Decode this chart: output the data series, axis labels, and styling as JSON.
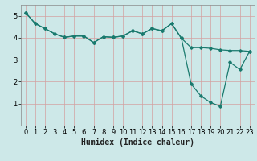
{
  "xlabel": "Humidex (Indice chaleur)",
  "background_color": "#cde8e8",
  "grid_color": "#d4a0a0",
  "line_color": "#1a7a6e",
  "xlim": [
    -0.5,
    23.5
  ],
  "ylim": [
    0,
    5.5
  ],
  "yticks": [
    1,
    2,
    3,
    4,
    5
  ],
  "xticks": [
    0,
    1,
    2,
    3,
    4,
    5,
    6,
    7,
    8,
    9,
    10,
    11,
    12,
    13,
    14,
    15,
    16,
    17,
    18,
    19,
    20,
    21,
    22,
    23
  ],
  "series1_x": [
    0,
    1,
    2,
    3,
    4,
    5,
    6,
    7,
    8,
    9,
    10,
    11,
    12,
    13,
    14,
    15,
    16,
    17,
    18,
    19,
    20,
    21,
    22,
    23
  ],
  "series1_y": [
    5.15,
    4.65,
    4.42,
    4.18,
    4.02,
    4.08,
    4.08,
    3.78,
    4.05,
    4.02,
    4.08,
    4.32,
    4.18,
    4.42,
    4.32,
    4.65,
    3.98,
    3.55,
    3.55,
    3.52,
    3.45,
    3.42,
    3.42,
    3.38
  ],
  "series2_x": [
    0,
    1,
    2,
    3,
    4,
    5,
    6,
    7,
    8,
    9,
    10,
    11,
    12,
    13,
    14,
    15,
    16,
    17,
    18,
    19,
    20,
    21,
    22,
    23
  ],
  "series2_y": [
    5.15,
    4.65,
    4.42,
    4.18,
    4.02,
    4.08,
    4.08,
    3.78,
    4.05,
    4.02,
    4.08,
    4.32,
    4.18,
    4.42,
    4.32,
    4.65,
    3.98,
    1.9,
    1.35,
    1.05,
    0.88,
    2.88,
    2.55,
    3.38
  ],
  "xlabel_fontsize": 7,
  "tick_fontsize": 6
}
